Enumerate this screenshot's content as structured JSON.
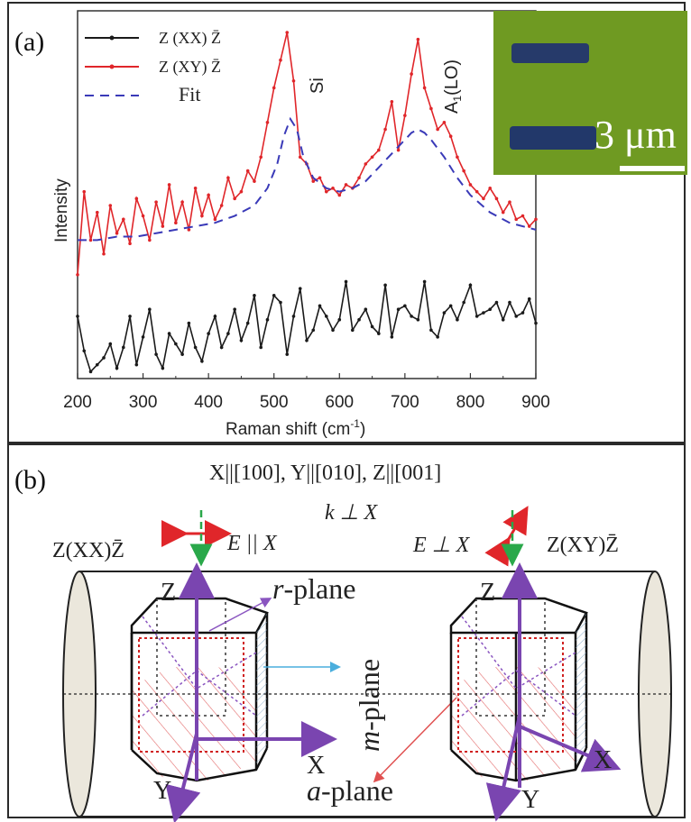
{
  "panels": {
    "a_label": "(a)",
    "b_label": "(b)"
  },
  "chart_data": {
    "type": "line",
    "xlabel": "Raman shift (cm",
    "xlabel_sup": "-1",
    "xlabel_close": ")",
    "ylabel": "Intensity",
    "xlim": [
      200,
      900
    ],
    "ylim": [
      0,
      1
    ],
    "xticks": [
      "200",
      "300",
      "400",
      "500",
      "600",
      "700",
      "800",
      "900"
    ],
    "legend": [
      {
        "label": "Z (XX) Z̄",
        "color": "#1a1a1a",
        "style": "solid-dot"
      },
      {
        "label": "Z (XY) Z̄",
        "color": "#e0262a",
        "style": "solid-dot"
      },
      {
        "label": "Fit",
        "color": "#3a3ab8",
        "style": "dashed"
      }
    ],
    "annotations": [
      {
        "text": "Si",
        "x": 525
      },
      {
        "text": "A1(LO)",
        "x": 725
      }
    ],
    "series": [
      {
        "name": "Z (XX) Z̄",
        "color": "#1a1a1a",
        "x": [
          200,
          210,
          220,
          230,
          240,
          250,
          260,
          270,
          280,
          290,
          300,
          310,
          320,
          330,
          340,
          350,
          360,
          370,
          380,
          390,
          400,
          410,
          420,
          430,
          440,
          450,
          460,
          470,
          480,
          490,
          500,
          510,
          520,
          530,
          540,
          550,
          560,
          570,
          580,
          590,
          600,
          610,
          620,
          630,
          640,
          650,
          660,
          670,
          680,
          690,
          700,
          710,
          720,
          730,
          740,
          750,
          760,
          770,
          780,
          790,
          800,
          810,
          820,
          830,
          840,
          850,
          860,
          870,
          880,
          890,
          900
        ],
        "y": [
          0.18,
          0.08,
          0.02,
          0.04,
          0.06,
          0.1,
          0.03,
          0.09,
          0.18,
          0.04,
          0.12,
          0.2,
          0.07,
          0.03,
          0.13,
          0.1,
          0.07,
          0.16,
          0.09,
          0.05,
          0.13,
          0.18,
          0.09,
          0.13,
          0.2,
          0.11,
          0.16,
          0.24,
          0.09,
          0.17,
          0.24,
          0.22,
          0.07,
          0.18,
          0.26,
          0.11,
          0.14,
          0.21,
          0.18,
          0.14,
          0.17,
          0.28,
          0.14,
          0.17,
          0.2,
          0.15,
          0.13,
          0.27,
          0.12,
          0.2,
          0.21,
          0.18,
          0.17,
          0.28,
          0.14,
          0.12,
          0.19,
          0.21,
          0.17,
          0.22,
          0.27,
          0.18,
          0.19,
          0.2,
          0.22,
          0.17,
          0.22,
          0.18,
          0.19,
          0.23,
          0.16
        ]
      },
      {
        "name": "Z (XY) Z̄",
        "color": "#e0262a",
        "x": [
          200,
          210,
          220,
          230,
          240,
          250,
          260,
          270,
          280,
          290,
          300,
          310,
          320,
          330,
          340,
          350,
          360,
          370,
          380,
          390,
          400,
          410,
          420,
          430,
          440,
          450,
          460,
          470,
          480,
          490,
          500,
          510,
          520,
          530,
          540,
          550,
          560,
          570,
          580,
          590,
          600,
          610,
          620,
          630,
          640,
          650,
          660,
          670,
          680,
          690,
          700,
          710,
          720,
          730,
          740,
          750,
          760,
          770,
          780,
          790,
          800,
          810,
          820,
          830,
          840,
          850,
          860,
          870,
          880,
          890,
          900
        ],
        "y": [
          0.3,
          0.54,
          0.4,
          0.48,
          0.36,
          0.5,
          0.42,
          0.46,
          0.39,
          0.52,
          0.47,
          0.4,
          0.51,
          0.44,
          0.56,
          0.45,
          0.51,
          0.43,
          0.55,
          0.47,
          0.53,
          0.46,
          0.5,
          0.58,
          0.52,
          0.54,
          0.6,
          0.57,
          0.64,
          0.74,
          0.84,
          0.92,
          1.0,
          0.86,
          0.64,
          0.62,
          0.57,
          0.58,
          0.54,
          0.55,
          0.53,
          0.56,
          0.55,
          0.58,
          0.62,
          0.64,
          0.66,
          0.72,
          0.8,
          0.66,
          0.76,
          0.88,
          0.98,
          0.84,
          0.78,
          0.72,
          0.74,
          0.7,
          0.64,
          0.6,
          0.56,
          0.54,
          0.52,
          0.55,
          0.52,
          0.48,
          0.51,
          0.46,
          0.47,
          0.44,
          0.46
        ]
      },
      {
        "name": "Fit",
        "color": "#3a3ab8",
        "x": [
          200,
          230,
          260,
          290,
          320,
          350,
          380,
          410,
          440,
          470,
          490,
          505,
          515,
          525,
          535,
          545,
          560,
          580,
          600,
          620,
          640,
          660,
          680,
          700,
          710,
          720,
          730,
          740,
          760,
          780,
          800,
          830,
          860,
          900
        ],
        "y": [
          0.4,
          0.4,
          0.41,
          0.41,
          0.42,
          0.43,
          0.44,
          0.45,
          0.47,
          0.5,
          0.55,
          0.62,
          0.7,
          0.75,
          0.72,
          0.64,
          0.58,
          0.55,
          0.54,
          0.55,
          0.57,
          0.61,
          0.65,
          0.69,
          0.71,
          0.72,
          0.71,
          0.69,
          0.64,
          0.58,
          0.53,
          0.48,
          0.45,
          0.43
        ]
      }
    ]
  },
  "inset": {
    "scale_label": "3 μm"
  },
  "schematic": {
    "axes_header": "X||[100], Y||[010], Z||[001]",
    "left_config": "Z(XX)Z̄",
    "right_config": "Z(XY)Z̄",
    "left_field": "E || X",
    "right_field": "E ⊥ X",
    "k_label": "k ⊥ X",
    "r_plane": "r-plane",
    "m_plane": "m-plane",
    "a_plane": "a-plane",
    "z_label": "Z",
    "x_label": "X",
    "y_label": "Y"
  }
}
